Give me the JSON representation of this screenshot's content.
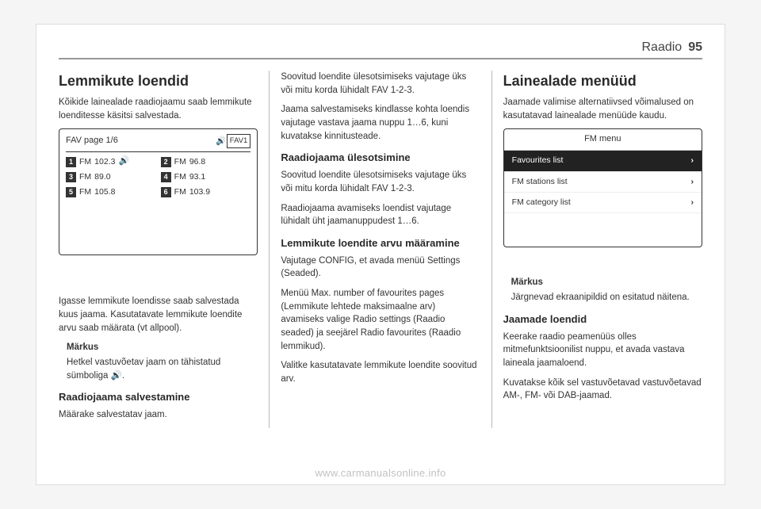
{
  "header": {
    "title": "Raadio",
    "page": "95"
  },
  "col1": {
    "h2": "Lemmikute loendid",
    "p1": "Kõikide lainealade raadiojaamu saab lemmikute loenditesse käsitsi salvestada.",
    "fav": {
      "title": "FAV page 1/6",
      "fav1": "FAV1",
      "cells": [
        {
          "n": "1",
          "label": "FM",
          "val": "102.3",
          "snd": true
        },
        {
          "n": "2",
          "label": "FM",
          "val": "96.8"
        },
        {
          "n": "3",
          "label": "FM",
          "val": "89.0"
        },
        {
          "n": "4",
          "label": "FM",
          "val": "93.1"
        },
        {
          "n": "5",
          "label": "FM",
          "val": "105.8"
        },
        {
          "n": "6",
          "label": "FM",
          "val": "103.9"
        }
      ]
    },
    "p2": "Igasse lemmikute loendisse saab salvestada kuus jaama. Kasutatavate lemmikute loendite arvu saab määrata (vt allpool).",
    "note_label": "Märkus",
    "note_body": "Hetkel vastuvõetav jaam on tähistatud sümboliga 🔊.",
    "h3a": "Raadiojaama salvestamine",
    "p3": "Määrake salvestatav jaam."
  },
  "col2": {
    "p1": "Soovitud loendite ülesotsimiseks vajutage üks või mitu korda lühidalt FAV 1-2-3.",
    "p2": "Jaama salvestamiseks kindlasse kohta loendis vajutage vastava jaama nuppu 1…6, kuni kuvatakse kinnitusteade.",
    "h3a": "Raadiojaama ülesotsimine",
    "p3": "Soovitud loendite ülesotsimiseks vajutage üks või mitu korda lühidalt FAV 1-2-3.",
    "p4": "Raadiojaama avamiseks loendist vajutage lühidalt üht jaamanuppudest 1…6.",
    "h3b": "Lemmikute loendite arvu määramine",
    "p5": "Vajutage CONFIG, et avada menüü Settings (Seaded).",
    "p6": "Menüü Max. number of favourites pages (Lemmikute lehtede maksimaalne arv) avamiseks valige Radio settings (Raadio seaded) ja seejärel Radio favourites (Raadio lemmikud).",
    "p7": "Valitke kasutatavate lemmikute loendite soovitud arv."
  },
  "col3": {
    "h2": "Lainealade menüüd",
    "p1": "Jaamade valimise alternatiivsed võimalused on kasutatavad lainealade menüüde kaudu.",
    "fm": {
      "title": "FM menu",
      "rows": [
        {
          "label": "Favourites list",
          "selected": true
        },
        {
          "label": "FM stations list",
          "selected": false
        },
        {
          "label": "FM category list",
          "selected": false
        }
      ]
    },
    "note_label": "Märkus",
    "note_body": "Järgnevad ekraanipildid on esitatud näitena.",
    "h3a": "Jaamade loendid",
    "p2": "Keerake raadio peamenüüs olles mitmefunktsioonilist nuppu, et avada vastava laineala jaamaloend.",
    "p3": "Kuvatakse kõik sel vastuvõetavad vastuvõetavad AM-, FM- või DAB-jaamad."
  },
  "watermark": "www.carmanualsonline.info"
}
